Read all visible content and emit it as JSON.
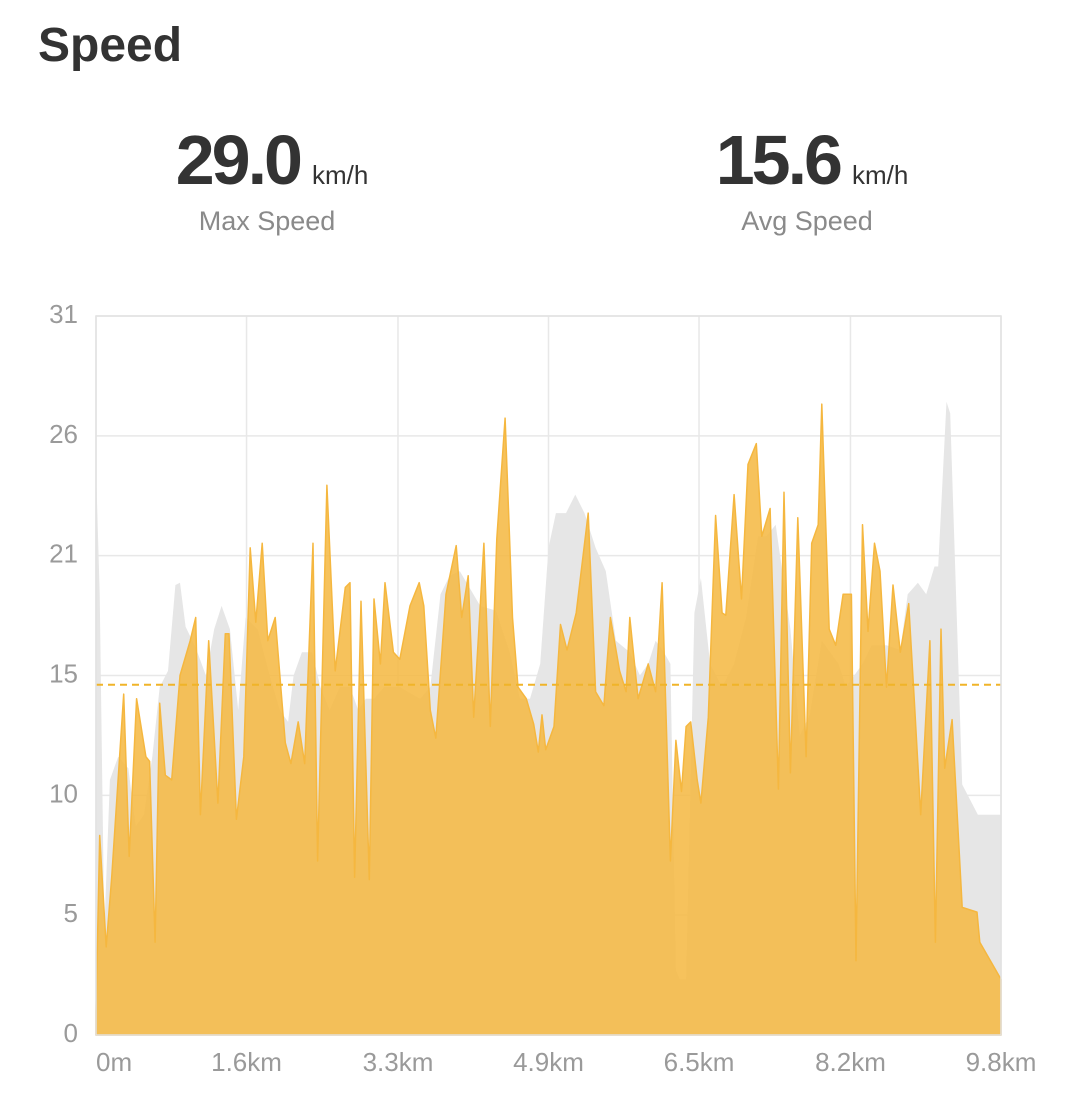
{
  "header": {
    "title": "Speed"
  },
  "stats": [
    {
      "value": "29.0",
      "unit": "km/h",
      "label": "Max Speed"
    },
    {
      "value": "15.6",
      "unit": "km/h",
      "label": "Avg Speed"
    }
  ],
  "chart_data": {
    "type": "area",
    "xlim": [
      0,
      9.8
    ],
    "xticks": [
      {
        "value": 0,
        "label": "0m"
      },
      {
        "value": 1.63,
        "label": "1.6km"
      },
      {
        "value": 3.27,
        "label": "3.3km"
      },
      {
        "value": 4.9,
        "label": "4.9km"
      },
      {
        "value": 6.53,
        "label": "6.5km"
      },
      {
        "value": 8.17,
        "label": "8.2km"
      },
      {
        "value": 9.8,
        "label": "9.8km"
      }
    ],
    "ylim": [
      0,
      31
    ],
    "yticks": [
      0,
      {
        "value": 5.17,
        "label": "5"
      },
      {
        "value": 10.33,
        "label": "10"
      },
      {
        "value": 15.5,
        "label": "15"
      },
      {
        "value": 20.67,
        "label": "21"
      },
      {
        "value": 25.83,
        "label": "26"
      },
      31
    ],
    "grid": true,
    "reference_line": 15.1,
    "reference_color": "#f0b429",
    "series": [
      {
        "color": "#e6e6e6",
        "x": [
          0,
          0.04,
          0.09,
          0.15,
          0.24,
          0.35,
          0.43,
          0.52,
          0.61,
          0.69,
          0.78,
          0.86,
          0.91,
          0.97,
          1.08,
          1.19,
          1.28,
          1.36,
          1.45,
          1.54,
          1.62,
          1.75,
          1.88,
          1.99,
          2.08,
          2.14,
          2.23,
          2.34,
          2.43,
          2.53,
          2.64,
          2.75,
          2.84,
          2.92,
          3.01,
          3.12,
          3.29,
          3.51,
          3.62,
          3.73,
          3.83,
          3.94,
          4.16,
          4.33,
          4.48,
          4.59,
          4.7,
          4.81,
          4.9,
          4.98,
          5.09,
          5.19,
          5.29,
          5.41,
          5.52,
          5.63,
          5.78,
          5.89,
          5.98,
          6.06,
          6.15,
          6.22,
          6.28,
          6.32,
          6.39,
          6.48,
          6.55,
          6.65,
          6.78,
          6.91,
          7.04,
          7.17,
          7.26,
          7.36,
          7.52,
          7.62,
          7.73,
          7.86,
          8.04,
          8.12,
          8.3,
          8.4,
          8.56,
          8.71,
          8.79,
          8.9,
          8.99,
          9.08,
          9.12,
          9.21,
          9.25,
          9.38,
          9.55,
          9.8
        ],
        "values": [
          24.5,
          19,
          4.5,
          11,
          12,
          11.5,
          9,
          9.5,
          12,
          15,
          15.7,
          19.4,
          19.5,
          17.6,
          16.7,
          15.5,
          17.5,
          18.5,
          17.5,
          14,
          18,
          17.5,
          15.5,
          14,
          13.5,
          15.5,
          16.5,
          16.5,
          15,
          14,
          15,
          15,
          14,
          14.5,
          14.5,
          15,
          15,
          14.5,
          15,
          19,
          19.8,
          20,
          18.5,
          18.3,
          16.5,
          14.5,
          14.5,
          16,
          21,
          22.5,
          22.5,
          23.3,
          22.5,
          21,
          20,
          17,
          16.5,
          15.5,
          16,
          17,
          16.5,
          16,
          2.8,
          2.4,
          2.4,
          18.2,
          19.7,
          16,
          15,
          16,
          18,
          21.5,
          21.5,
          22,
          17.5,
          12.9,
          13.8,
          17,
          16,
          15,
          16,
          16.8,
          16.8,
          16.6,
          19,
          19.5,
          19,
          20.2,
          20.2,
          27.3,
          26.8,
          10.8,
          9.5,
          9.5
        ]
      },
      {
        "color": "#f5b73f",
        "x": [
          0,
          0.04,
          0.11,
          0.17,
          0.3,
          0.36,
          0.44,
          0.54,
          0.58,
          0.64,
          0.69,
          0.75,
          0.82,
          0.91,
          1.02,
          1.08,
          1.13,
          1.22,
          1.32,
          1.4,
          1.44,
          1.52,
          1.6,
          1.67,
          1.73,
          1.8,
          1.86,
          1.94,
          2.05,
          2.11,
          2.19,
          2.26,
          2.35,
          2.4,
          2.5,
          2.59,
          2.7,
          2.75,
          2.8,
          2.87,
          2.96,
          3.01,
          3.08,
          3.13,
          3.22,
          3.29,
          3.4,
          3.5,
          3.55,
          3.62,
          3.68,
          3.79,
          3.9,
          3.96,
          4.03,
          4.09,
          4.2,
          4.27,
          4.34,
          4.43,
          4.51,
          4.57,
          4.66,
          4.74,
          4.79,
          4.83,
          4.87,
          4.96,
          5.03,
          5.1,
          5.2,
          5.33,
          5.41,
          5.5,
          5.57,
          5.67,
          5.74,
          5.78,
          5.87,
          5.98,
          6.06,
          6.13,
          6.22,
          6.28,
          6.34,
          6.39,
          6.44,
          6.51,
          6.55,
          6.63,
          6.71,
          6.78,
          6.82,
          6.91,
          6.99,
          7.06,
          7.15,
          7.21,
          7.3,
          7.39,
          7.45,
          7.52,
          7.6,
          7.69,
          7.75,
          7.82,
          7.86,
          7.94,
          8.01,
          8.09,
          8.18,
          8.23,
          8.3,
          8.36,
          8.43,
          8.49,
          8.56,
          8.63,
          8.71,
          8.8,
          8.86,
          8.93,
          9.03,
          9.09,
          9.15,
          9.19,
          9.27,
          9.38,
          9.54,
          9.57,
          9.8
        ],
        "values": [
          1,
          8.6,
          3.8,
          6.8,
          14.7,
          7.7,
          14.5,
          12,
          11.8,
          4,
          14.3,
          11.2,
          11,
          15.5,
          17,
          18,
          9.5,
          17,
          10,
          17.3,
          17.3,
          9.3,
          12,
          21,
          17.8,
          21.2,
          17,
          18,
          12.6,
          11.7,
          13.5,
          11.7,
          21.2,
          7.5,
          23.7,
          15.7,
          19.3,
          19.5,
          6.8,
          18.7,
          6.7,
          18.8,
          16,
          19.5,
          16.5,
          16.2,
          18.5,
          19.5,
          18.5,
          14,
          12.8,
          19,
          21.1,
          18,
          19.8,
          13.7,
          21.2,
          13.3,
          21.4,
          26.6,
          18,
          15,
          14.5,
          13.4,
          12.2,
          13.8,
          12.3,
          13.3,
          17.7,
          16.6,
          18.2,
          22.5,
          14.8,
          14.2,
          18,
          15.7,
          14.8,
          18,
          14.5,
          16,
          14.8,
          19.5,
          7.5,
          12.7,
          10.5,
          13.3,
          13.5,
          11,
          10,
          13.7,
          22.4,
          18.2,
          18.1,
          23.3,
          18.8,
          24.6,
          25.5,
          21.5,
          22.7,
          10.6,
          23.4,
          11.3,
          22.3,
          12,
          21.2,
          22,
          27.2,
          17.5,
          16.8,
          19,
          19,
          3.2,
          22,
          17.4,
          21.2,
          20,
          15,
          19.4,
          16.5,
          18.6,
          14.5,
          9.5,
          17,
          4,
          17.5,
          11.5,
          13.6,
          5.5,
          5.3,
          4,
          2.4
        ]
      }
    ]
  }
}
